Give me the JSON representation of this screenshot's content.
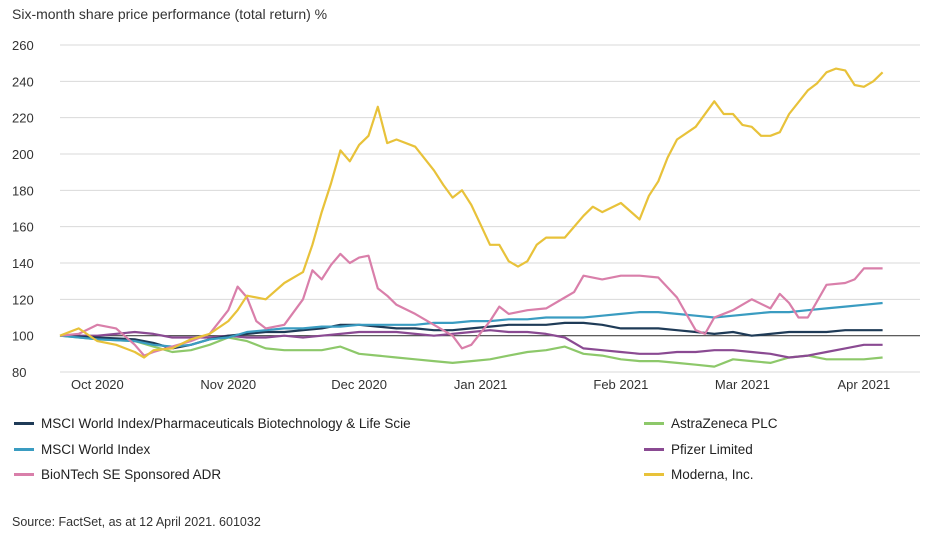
{
  "chart_data": {
    "type": "line",
    "title": "Six-month share price performance (total return) %",
    "xlabel": "",
    "ylabel": "",
    "ylim": [
      80,
      260
    ],
    "yticks": [
      80,
      100,
      120,
      140,
      160,
      180,
      200,
      220,
      240,
      260
    ],
    "xticks": [
      "Oct 2020",
      "Nov 2020",
      "Dec 2020",
      "Jan 2021",
      "Feb 2021",
      "Mar 2021",
      "Apr 2021"
    ],
    "grid": true,
    "legend_position": "bottom",
    "series": [
      {
        "name": "MSCI World Index/Pharmaceuticals Biotechnology & Life Scie",
        "color": "#1f3b57",
        "points": [
          [
            0,
            100
          ],
          [
            4,
            99
          ],
          [
            8,
            98
          ],
          [
            10,
            96
          ],
          [
            12,
            93
          ],
          [
            14,
            95
          ],
          [
            16,
            98
          ],
          [
            18,
            100
          ],
          [
            20,
            101
          ],
          [
            22,
            102
          ],
          [
            24,
            102
          ],
          [
            26,
            103
          ],
          [
            28,
            104
          ],
          [
            30,
            106
          ],
          [
            32,
            106
          ],
          [
            34,
            105
          ],
          [
            36,
            104
          ],
          [
            38,
            104
          ],
          [
            40,
            103
          ],
          [
            42,
            103
          ],
          [
            44,
            104
          ],
          [
            46,
            105
          ],
          [
            48,
            106
          ],
          [
            50,
            106
          ],
          [
            52,
            106
          ],
          [
            54,
            107
          ],
          [
            56,
            107
          ],
          [
            58,
            106
          ],
          [
            60,
            104
          ],
          [
            62,
            104
          ],
          [
            64,
            104
          ],
          [
            66,
            103
          ],
          [
            68,
            102
          ],
          [
            70,
            101
          ],
          [
            72,
            102
          ],
          [
            74,
            100
          ],
          [
            76,
            101
          ],
          [
            78,
            102
          ],
          [
            80,
            102
          ],
          [
            82,
            102
          ],
          [
            84,
            103
          ],
          [
            86,
            103
          ],
          [
            88,
            103
          ]
        ]
      },
      {
        "name": "MSCI World Index",
        "color": "#3a9cc1",
        "points": [
          [
            0,
            100
          ],
          [
            4,
            98
          ],
          [
            8,
            97
          ],
          [
            10,
            95
          ],
          [
            12,
            94
          ],
          [
            14,
            95
          ],
          [
            16,
            98
          ],
          [
            18,
            99
          ],
          [
            20,
            102
          ],
          [
            22,
            103
          ],
          [
            24,
            104
          ],
          [
            26,
            104
          ],
          [
            28,
            105
          ],
          [
            30,
            105
          ],
          [
            32,
            106
          ],
          [
            34,
            106
          ],
          [
            36,
            106
          ],
          [
            38,
            106
          ],
          [
            40,
            107
          ],
          [
            42,
            107
          ],
          [
            44,
            108
          ],
          [
            46,
            108
          ],
          [
            48,
            109
          ],
          [
            50,
            109
          ],
          [
            52,
            110
          ],
          [
            54,
            110
          ],
          [
            56,
            110
          ],
          [
            58,
            111
          ],
          [
            60,
            112
          ],
          [
            62,
            113
          ],
          [
            64,
            113
          ],
          [
            66,
            112
          ],
          [
            68,
            111
          ],
          [
            70,
            110
          ],
          [
            72,
            111
          ],
          [
            74,
            112
          ],
          [
            76,
            113
          ],
          [
            78,
            113
          ],
          [
            80,
            114
          ],
          [
            82,
            115
          ],
          [
            84,
            116
          ],
          [
            86,
            117
          ],
          [
            88,
            118
          ]
        ]
      },
      {
        "name": "BioNTech SE Sponsored ADR",
        "color": "#d97faa",
        "points": [
          [
            0,
            100
          ],
          [
            2,
            101
          ],
          [
            4,
            106
          ],
          [
            6,
            104
          ],
          [
            8,
            95
          ],
          [
            9,
            89
          ],
          [
            10,
            91
          ],
          [
            12,
            94
          ],
          [
            14,
            97
          ],
          [
            16,
            101
          ],
          [
            18,
            114
          ],
          [
            19,
            127
          ],
          [
            20,
            121
          ],
          [
            21,
            108
          ],
          [
            22,
            104
          ],
          [
            24,
            106
          ],
          [
            26,
            120
          ],
          [
            27,
            136
          ],
          [
            28,
            131
          ],
          [
            29,
            139
          ],
          [
            30,
            145
          ],
          [
            31,
            140
          ],
          [
            32,
            143
          ],
          [
            33,
            144
          ],
          [
            34,
            126
          ],
          [
            35,
            122
          ],
          [
            36,
            117
          ],
          [
            38,
            112
          ],
          [
            40,
            106
          ],
          [
            42,
            100
          ],
          [
            43,
            93
          ],
          [
            44,
            95
          ],
          [
            46,
            108
          ],
          [
            47,
            116
          ],
          [
            48,
            112
          ],
          [
            50,
            114
          ],
          [
            52,
            115
          ],
          [
            54,
            121
          ],
          [
            55,
            124
          ],
          [
            56,
            133
          ],
          [
            58,
            131
          ],
          [
            60,
            133
          ],
          [
            62,
            133
          ],
          [
            64,
            132
          ],
          [
            66,
            121
          ],
          [
            67,
            112
          ],
          [
            68,
            103
          ],
          [
            69,
            101
          ],
          [
            70,
            110
          ],
          [
            72,
            114
          ],
          [
            74,
            120
          ],
          [
            76,
            115
          ],
          [
            77,
            123
          ],
          [
            78,
            118
          ],
          [
            79,
            110
          ],
          [
            80,
            110
          ],
          [
            82,
            128
          ],
          [
            84,
            129
          ],
          [
            85,
            131
          ],
          [
            86,
            137
          ],
          [
            88,
            137
          ]
        ]
      },
      {
        "name": "AstraZeneca PLC",
        "color": "#8dc86a",
        "points": [
          [
            0,
            100
          ],
          [
            4,
            98
          ],
          [
            8,
            97
          ],
          [
            10,
            94
          ],
          [
            12,
            91
          ],
          [
            14,
            92
          ],
          [
            16,
            95
          ],
          [
            18,
            99
          ],
          [
            20,
            97
          ],
          [
            22,
            93
          ],
          [
            24,
            92
          ],
          [
            26,
            92
          ],
          [
            28,
            92
          ],
          [
            30,
            94
          ],
          [
            32,
            90
          ],
          [
            34,
            89
          ],
          [
            36,
            88
          ],
          [
            38,
            87
          ],
          [
            40,
            86
          ],
          [
            42,
            85
          ],
          [
            44,
            86
          ],
          [
            46,
            87
          ],
          [
            48,
            89
          ],
          [
            50,
            91
          ],
          [
            52,
            92
          ],
          [
            54,
            94
          ],
          [
            56,
            90
          ],
          [
            58,
            89
          ],
          [
            60,
            87
          ],
          [
            62,
            86
          ],
          [
            64,
            86
          ],
          [
            66,
            85
          ],
          [
            68,
            84
          ],
          [
            70,
            83
          ],
          [
            72,
            87
          ],
          [
            74,
            86
          ],
          [
            76,
            85
          ],
          [
            78,
            88
          ],
          [
            80,
            89
          ],
          [
            82,
            87
          ],
          [
            84,
            87
          ],
          [
            86,
            87
          ],
          [
            88,
            88
          ]
        ]
      },
      {
        "name": "Pfizer Limited",
        "color": "#8a4a92",
        "points": [
          [
            0,
            100
          ],
          [
            4,
            100
          ],
          [
            6,
            101
          ],
          [
            8,
            102
          ],
          [
            10,
            101
          ],
          [
            12,
            99
          ],
          [
            14,
            99
          ],
          [
            16,
            99
          ],
          [
            18,
            100
          ],
          [
            20,
            99
          ],
          [
            22,
            99
          ],
          [
            24,
            100
          ],
          [
            26,
            99
          ],
          [
            28,
            100
          ],
          [
            30,
            101
          ],
          [
            32,
            102
          ],
          [
            34,
            102
          ],
          [
            36,
            102
          ],
          [
            38,
            101
          ],
          [
            40,
            100
          ],
          [
            42,
            101
          ],
          [
            44,
            102
          ],
          [
            46,
            103
          ],
          [
            48,
            102
          ],
          [
            50,
            102
          ],
          [
            52,
            101
          ],
          [
            54,
            99
          ],
          [
            56,
            93
          ],
          [
            58,
            92
          ],
          [
            60,
            91
          ],
          [
            62,
            90
          ],
          [
            64,
            90
          ],
          [
            66,
            91
          ],
          [
            68,
            91
          ],
          [
            70,
            92
          ],
          [
            72,
            92
          ],
          [
            74,
            91
          ],
          [
            76,
            90
          ],
          [
            78,
            88
          ],
          [
            80,
            89
          ],
          [
            82,
            91
          ],
          [
            84,
            93
          ],
          [
            86,
            95
          ],
          [
            88,
            95
          ]
        ]
      },
      {
        "name": "Moderna, Inc.",
        "color": "#e8c23a",
        "points": [
          [
            0,
            100
          ],
          [
            2,
            104
          ],
          [
            4,
            97
          ],
          [
            6,
            95
          ],
          [
            8,
            91
          ],
          [
            9,
            88
          ],
          [
            10,
            92
          ],
          [
            12,
            93
          ],
          [
            14,
            98
          ],
          [
            16,
            101
          ],
          [
            18,
            108
          ],
          [
            19,
            114
          ],
          [
            20,
            122
          ],
          [
            22,
            120
          ],
          [
            24,
            129
          ],
          [
            26,
            135
          ],
          [
            27,
            150
          ],
          [
            28,
            168
          ],
          [
            29,
            184
          ],
          [
            30,
            202
          ],
          [
            31,
            196
          ],
          [
            32,
            205
          ],
          [
            33,
            210
          ],
          [
            34,
            226
          ],
          [
            35,
            206
          ],
          [
            36,
            208
          ],
          [
            38,
            204
          ],
          [
            40,
            191
          ],
          [
            41,
            183
          ],
          [
            42,
            176
          ],
          [
            43,
            180
          ],
          [
            44,
            172
          ],
          [
            45,
            161
          ],
          [
            46,
            150
          ],
          [
            47,
            150
          ],
          [
            48,
            141
          ],
          [
            49,
            138
          ],
          [
            50,
            141
          ],
          [
            51,
            150
          ],
          [
            52,
            154
          ],
          [
            54,
            154
          ],
          [
            56,
            166
          ],
          [
            57,
            171
          ],
          [
            58,
            168
          ],
          [
            60,
            173
          ],
          [
            62,
            164
          ],
          [
            63,
            177
          ],
          [
            64,
            185
          ],
          [
            65,
            198
          ],
          [
            66,
            208
          ],
          [
            68,
            215
          ],
          [
            70,
            229
          ],
          [
            71,
            222
          ],
          [
            72,
            222
          ],
          [
            73,
            216
          ],
          [
            74,
            215
          ],
          [
            75,
            210
          ],
          [
            76,
            210
          ],
          [
            77,
            212
          ],
          [
            78,
            222
          ],
          [
            80,
            235
          ],
          [
            81,
            239
          ],
          [
            82,
            245
          ],
          [
            83,
            247
          ],
          [
            84,
            246
          ],
          [
            85,
            238
          ],
          [
            86,
            237
          ],
          [
            87,
            240
          ],
          [
            88,
            245
          ]
        ]
      }
    ]
  },
  "legend": {
    "items": [
      {
        "label": "MSCI World Index/Pharmaceuticals Biotechnology & Life Scie",
        "color": "#1f3b57"
      },
      {
        "label": "MSCI World Index",
        "color": "#3a9cc1"
      },
      {
        "label": "BioNTech SE Sponsored ADR",
        "color": "#d97faa"
      },
      {
        "label": "AstraZeneca PLC",
        "color": "#8dc86a"
      },
      {
        "label": "Pfizer Limited",
        "color": "#8a4a92"
      },
      {
        "label": "Moderna, Inc.",
        "color": "#e8c23a"
      }
    ]
  },
  "source": "Source: FactSet, as at 12 April 2021. 601032"
}
